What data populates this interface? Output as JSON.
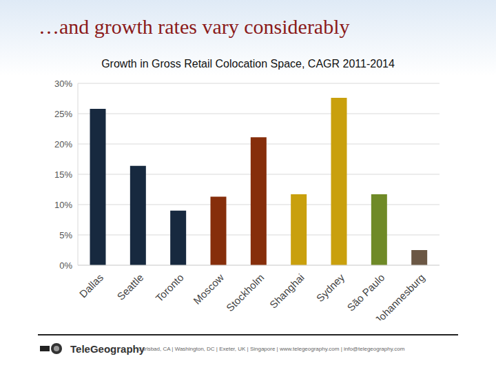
{
  "slide": {
    "title": "…and growth rates vary considerably",
    "logo": "TeleGeography",
    "footer": "Carlsbad, CA | Washington, DC | Exeter, UK | Singapore | www.telegeography.com | info@telegeography.com"
  },
  "chart_data": {
    "type": "bar",
    "title": "Growth in Gross Retail Colocation Space, CAGR 2011-2014",
    "categories": [
      "Dallas",
      "Seattle",
      "Toronto",
      "Moscow",
      "Stockholm",
      "Shanghai",
      "Sydney",
      "São Paulo",
      "Johannesburg"
    ],
    "values": [
      25.8,
      16.4,
      9.0,
      11.3,
      21.1,
      11.7,
      27.6,
      11.7,
      2.5
    ],
    "colors": [
      "#17293f",
      "#17293f",
      "#17293f",
      "#862e0b",
      "#862e0b",
      "#c9a00d",
      "#c9a00d",
      "#6f8a27",
      "#6b5744"
    ],
    "ylim": [
      0,
      30
    ],
    "yticks": [
      {
        "value": 0,
        "label": "0%"
      },
      {
        "value": 5,
        "label": "5%"
      },
      {
        "value": 10,
        "label": "10%"
      },
      {
        "value": 15,
        "label": "15%"
      },
      {
        "value": 20,
        "label": "20%"
      },
      {
        "value": 25,
        "label": "25%"
      },
      {
        "value": 30,
        "label": "30%"
      }
    ],
    "grid": true
  }
}
